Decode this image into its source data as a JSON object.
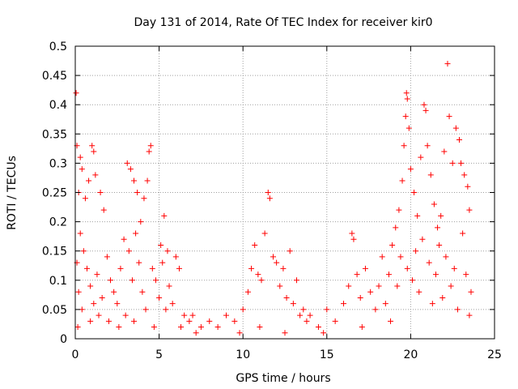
{
  "chart_data": {
    "type": "scatter",
    "title": "Day 131 of 2014, Rate Of TEC Index for receiver kir0",
    "xlabel": "GPS time / hours",
    "ylabel": "ROTI / TECUs",
    "xlim": [
      0,
      25
    ],
    "ylim": [
      0,
      0.5
    ],
    "xticks": [
      "0",
      "5",
      "10",
      "15",
      "20",
      "25"
    ],
    "yticks": [
      "0",
      "0.05",
      "0.1",
      "0.15",
      "0.2",
      "0.25",
      "0.3",
      "0.35",
      "0.4",
      "0.45",
      "0.5"
    ],
    "grid": true,
    "marker": "+",
    "color": "#ff0000",
    "series": [
      {
        "points": [
          [
            0.05,
            0.42
          ],
          [
            0.1,
            0.33
          ],
          [
            0.2,
            0.25
          ],
          [
            0.3,
            0.31
          ],
          [
            0.4,
            0.29
          ],
          [
            0.6,
            0.24
          ],
          [
            0.8,
            0.27
          ],
          [
            1.0,
            0.33
          ],
          [
            1.1,
            0.32
          ],
          [
            1.2,
            0.28
          ],
          [
            1.5,
            0.25
          ],
          [
            1.7,
            0.22
          ],
          [
            0.1,
            0.13
          ],
          [
            0.2,
            0.08
          ],
          [
            0.15,
            0.02
          ],
          [
            0.3,
            0.18
          ],
          [
            0.5,
            0.15
          ],
          [
            0.7,
            0.12
          ],
          [
            0.9,
            0.09
          ],
          [
            1.1,
            0.06
          ],
          [
            1.3,
            0.11
          ],
          [
            1.6,
            0.07
          ],
          [
            1.9,
            0.14
          ],
          [
            2.1,
            0.1
          ],
          [
            2.3,
            0.08
          ],
          [
            2.5,
            0.06
          ],
          [
            2.7,
            0.12
          ],
          [
            2.9,
            0.17
          ],
          [
            3.1,
            0.3
          ],
          [
            3.3,
            0.29
          ],
          [
            3.5,
            0.27
          ],
          [
            3.7,
            0.25
          ],
          [
            3.9,
            0.2
          ],
          [
            4.1,
            0.24
          ],
          [
            4.3,
            0.27
          ],
          [
            4.4,
            0.32
          ],
          [
            4.5,
            0.33
          ],
          [
            3.2,
            0.15
          ],
          [
            3.4,
            0.1
          ],
          [
            3.6,
            0.18
          ],
          [
            3.8,
            0.13
          ],
          [
            4.0,
            0.08
          ],
          [
            4.2,
            0.05
          ],
          [
            4.6,
            0.12
          ],
          [
            4.8,
            0.1
          ],
          [
            5.0,
            0.07
          ],
          [
            5.2,
            0.13
          ],
          [
            5.4,
            0.05
          ],
          [
            5.6,
            0.09
          ],
          [
            5.8,
            0.06
          ],
          [
            5.1,
            0.16
          ],
          [
            5.3,
            0.21
          ],
          [
            5.5,
            0.15
          ],
          [
            6.0,
            0.14
          ],
          [
            6.2,
            0.12
          ],
          [
            6.5,
            0.04
          ],
          [
            6.8,
            0.03
          ],
          [
            7.0,
            0.04
          ],
          [
            7.5,
            0.02
          ],
          [
            8.0,
            0.03
          ],
          [
            8.5,
            0.02
          ],
          [
            9.0,
            0.04
          ],
          [
            9.5,
            0.03
          ],
          [
            10.0,
            0.05
          ],
          [
            10.3,
            0.08
          ],
          [
            10.5,
            0.12
          ],
          [
            10.7,
            0.16
          ],
          [
            10.9,
            0.11
          ],
          [
            11.1,
            0.1
          ],
          [
            11.3,
            0.18
          ],
          [
            11.5,
            0.25
          ],
          [
            11.6,
            0.24
          ],
          [
            11.8,
            0.14
          ],
          [
            12.0,
            0.13
          ],
          [
            12.2,
            0.09
          ],
          [
            12.4,
            0.12
          ],
          [
            12.6,
            0.07
          ],
          [
            12.8,
            0.15
          ],
          [
            13.0,
            0.06
          ],
          [
            13.2,
            0.1
          ],
          [
            13.4,
            0.04
          ],
          [
            13.6,
            0.05
          ],
          [
            13.8,
            0.03
          ],
          [
            14.0,
            0.04
          ],
          [
            14.5,
            0.02
          ],
          [
            15.0,
            0.05
          ],
          [
            15.5,
            0.03
          ],
          [
            16.0,
            0.06
          ],
          [
            16.3,
            0.09
          ],
          [
            16.5,
            0.18
          ],
          [
            16.6,
            0.17
          ],
          [
            16.8,
            0.11
          ],
          [
            17.0,
            0.07
          ],
          [
            17.3,
            0.12
          ],
          [
            17.6,
            0.08
          ],
          [
            17.9,
            0.05
          ],
          [
            18.1,
            0.09
          ],
          [
            18.3,
            0.14
          ],
          [
            18.5,
            0.06
          ],
          [
            18.7,
            0.11
          ],
          [
            18.9,
            0.16
          ],
          [
            19.1,
            0.19
          ],
          [
            19.3,
            0.22
          ],
          [
            19.5,
            0.27
          ],
          [
            19.6,
            0.33
          ],
          [
            19.7,
            0.38
          ],
          [
            19.75,
            0.42
          ],
          [
            19.8,
            0.41
          ],
          [
            19.9,
            0.36
          ],
          [
            20.0,
            0.29
          ],
          [
            20.2,
            0.25
          ],
          [
            20.4,
            0.21
          ],
          [
            20.6,
            0.31
          ],
          [
            20.8,
            0.4
          ],
          [
            20.9,
            0.39
          ],
          [
            21.0,
            0.33
          ],
          [
            21.2,
            0.28
          ],
          [
            21.4,
            0.23
          ],
          [
            21.6,
            0.19
          ],
          [
            21.8,
            0.21
          ],
          [
            22.0,
            0.32
          ],
          [
            22.2,
            0.47
          ],
          [
            22.3,
            0.38
          ],
          [
            22.5,
            0.3
          ],
          [
            22.7,
            0.36
          ],
          [
            22.9,
            0.34
          ],
          [
            23.0,
            0.3
          ],
          [
            23.2,
            0.28
          ],
          [
            23.4,
            0.26
          ],
          [
            23.5,
            0.22
          ],
          [
            19.2,
            0.09
          ],
          [
            19.4,
            0.14
          ],
          [
            19.8,
            0.12
          ],
          [
            20.1,
            0.1
          ],
          [
            20.3,
            0.15
          ],
          [
            20.5,
            0.08
          ],
          [
            20.7,
            0.17
          ],
          [
            21.1,
            0.13
          ],
          [
            21.3,
            0.06
          ],
          [
            21.5,
            0.11
          ],
          [
            21.7,
            0.16
          ],
          [
            21.9,
            0.07
          ],
          [
            22.1,
            0.14
          ],
          [
            22.4,
            0.09
          ],
          [
            22.6,
            0.12
          ],
          [
            22.8,
            0.05
          ],
          [
            23.1,
            0.18
          ],
          [
            23.3,
            0.11
          ],
          [
            23.5,
            0.04
          ],
          [
            23.6,
            0.08
          ],
          [
            0.4,
            0.05
          ],
          [
            0.9,
            0.03
          ],
          [
            1.4,
            0.04
          ],
          [
            2.0,
            0.03
          ],
          [
            2.6,
            0.02
          ],
          [
            3.0,
            0.04
          ],
          [
            3.5,
            0.03
          ],
          [
            4.7,
            0.02
          ],
          [
            6.3,
            0.02
          ],
          [
            7.2,
            0.01
          ],
          [
            9.8,
            0.01
          ],
          [
            11.0,
            0.02
          ],
          [
            12.5,
            0.01
          ],
          [
            14.8,
            0.01
          ],
          [
            17.1,
            0.02
          ],
          [
            18.8,
            0.03
          ]
        ]
      }
    ]
  }
}
